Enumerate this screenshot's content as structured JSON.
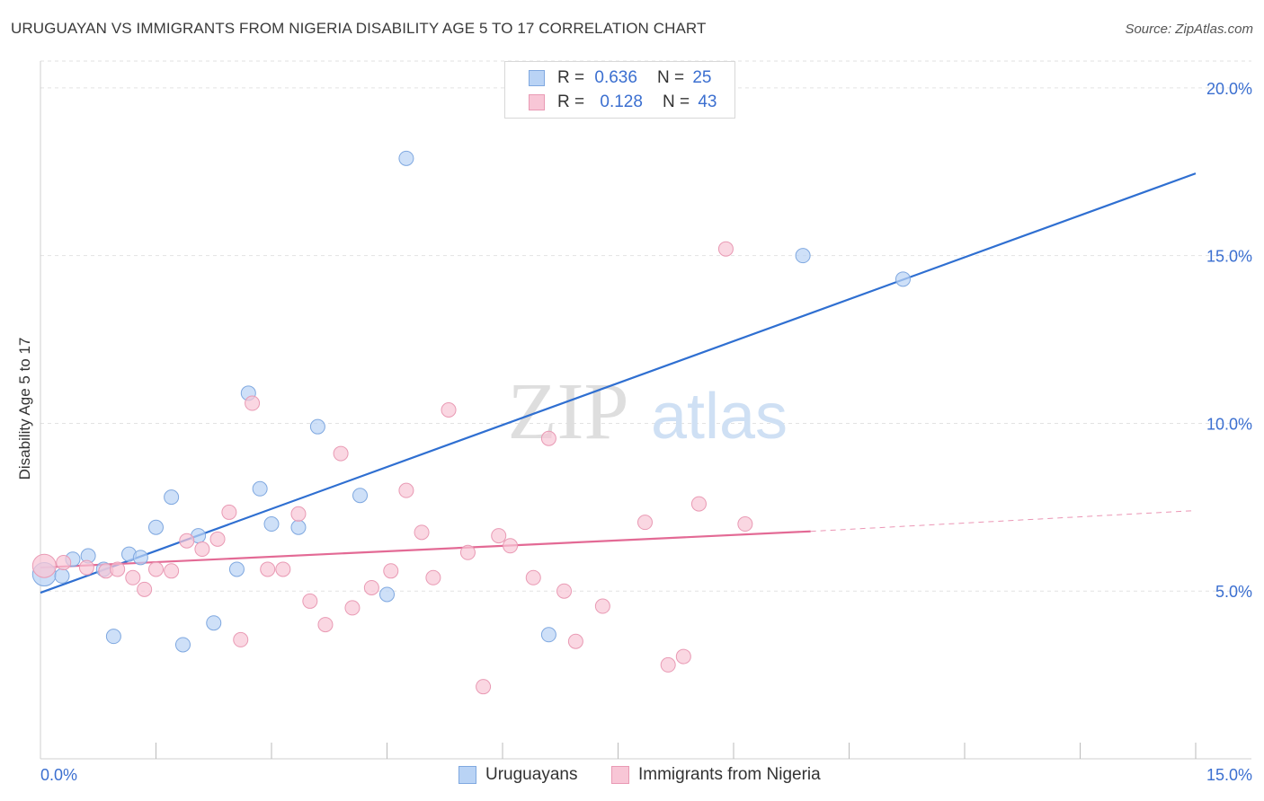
{
  "title": "URUGUAYAN VS IMMIGRANTS FROM NIGERIA DISABILITY AGE 5 TO 17 CORRELATION CHART",
  "source": "Source: ZipAtlas.com",
  "watermark": {
    "zip": "ZIP",
    "atlas": "atlas"
  },
  "legend": {
    "rows": [
      {
        "r_label": "R =",
        "r_value": "0.636",
        "n_label": "N =",
        "n_value": "25"
      },
      {
        "r_label": "R =",
        "r_value": "0.128",
        "n_label": "N =",
        "n_value": "43"
      }
    ]
  },
  "colors": {
    "blue_fill": "#b9d3f5",
    "blue_stroke": "#7fa8e0",
    "blue_line": "#2f6fd1",
    "pink_fill": "#f8c6d6",
    "pink_stroke": "#e99ab4",
    "pink_line": "#e36a95",
    "tick_text": "#3b6fd0",
    "grid": "#e2e2e2"
  },
  "chart_data": {
    "type": "scatter",
    "xlabel": "",
    "ylabel": "Disability Age 5 to 17",
    "xlim": [
      0,
      15
    ],
    "ylim": [
      0,
      20.8
    ],
    "x_tick_labels": [
      "0.0%",
      "15.0%"
    ],
    "y_ticks": [
      5,
      10,
      15,
      20
    ],
    "y_tick_labels": [
      "5.0%",
      "10.0%",
      "15.0%",
      "20.0%"
    ],
    "grid": true,
    "legend_position": "bottom",
    "series": [
      {
        "name": "Uruguayans",
        "points": [
          [
            0.05,
            5.5
          ],
          [
            0.28,
            5.45
          ],
          [
            0.42,
            5.95
          ],
          [
            0.62,
            6.05
          ],
          [
            0.82,
            5.65
          ],
          [
            0.95,
            3.65
          ],
          [
            1.15,
            6.1
          ],
          [
            1.3,
            6.0
          ],
          [
            1.5,
            6.9
          ],
          [
            1.7,
            7.8
          ],
          [
            1.85,
            3.4
          ],
          [
            2.05,
            6.65
          ],
          [
            2.25,
            4.05
          ],
          [
            2.55,
            5.65
          ],
          [
            2.7,
            10.9
          ],
          [
            2.85,
            8.05
          ],
          [
            3.0,
            7.0
          ],
          [
            3.35,
            6.9
          ],
          [
            3.6,
            9.9
          ],
          [
            4.15,
            7.85
          ],
          [
            4.5,
            4.9
          ],
          [
            4.75,
            17.9
          ],
          [
            6.6,
            3.7
          ],
          [
            9.9,
            15.0
          ],
          [
            11.2,
            14.3
          ]
        ],
        "trend": {
          "x": [
            0,
            15
          ],
          "y": [
            4.95,
            17.45
          ]
        }
      },
      {
        "name": "Immigrants from Nigeria",
        "points": [
          [
            0.05,
            5.75
          ],
          [
            0.3,
            5.85
          ],
          [
            0.6,
            5.7
          ],
          [
            0.85,
            5.6
          ],
          [
            1.0,
            5.65
          ],
          [
            1.2,
            5.4
          ],
          [
            1.35,
            5.05
          ],
          [
            1.5,
            5.65
          ],
          [
            1.7,
            5.6
          ],
          [
            1.9,
            6.5
          ],
          [
            2.1,
            6.25
          ],
          [
            2.3,
            6.55
          ],
          [
            2.45,
            7.35
          ],
          [
            2.6,
            3.55
          ],
          [
            2.75,
            10.6
          ],
          [
            2.95,
            5.65
          ],
          [
            3.15,
            5.65
          ],
          [
            3.35,
            7.3
          ],
          [
            3.5,
            4.7
          ],
          [
            3.7,
            4.0
          ],
          [
            3.9,
            9.1
          ],
          [
            4.05,
            4.5
          ],
          [
            4.3,
            5.1
          ],
          [
            4.55,
            5.6
          ],
          [
            4.75,
            8.0
          ],
          [
            4.95,
            6.75
          ],
          [
            5.1,
            5.4
          ],
          [
            5.3,
            10.4
          ],
          [
            5.55,
            6.15
          ],
          [
            5.75,
            2.15
          ],
          [
            5.95,
            6.65
          ],
          [
            6.1,
            6.35
          ],
          [
            6.4,
            5.4
          ],
          [
            6.6,
            9.55
          ],
          [
            6.8,
            5.0
          ],
          [
            6.95,
            3.5
          ],
          [
            7.3,
            4.55
          ],
          [
            7.85,
            7.05
          ],
          [
            8.15,
            2.8
          ],
          [
            8.35,
            3.05
          ],
          [
            8.55,
            7.6
          ],
          [
            8.9,
            15.2
          ],
          [
            9.15,
            7.0
          ]
        ],
        "trend": {
          "x": [
            0,
            10.0
          ],
          "y": [
            5.7,
            6.78
          ]
        },
        "trend_dashed": {
          "x": [
            10.0,
            15.0
          ],
          "y": [
            6.78,
            7.4
          ]
        }
      }
    ]
  },
  "bottom_legend": [
    "Uruguayans",
    "Immigrants from Nigeria"
  ]
}
